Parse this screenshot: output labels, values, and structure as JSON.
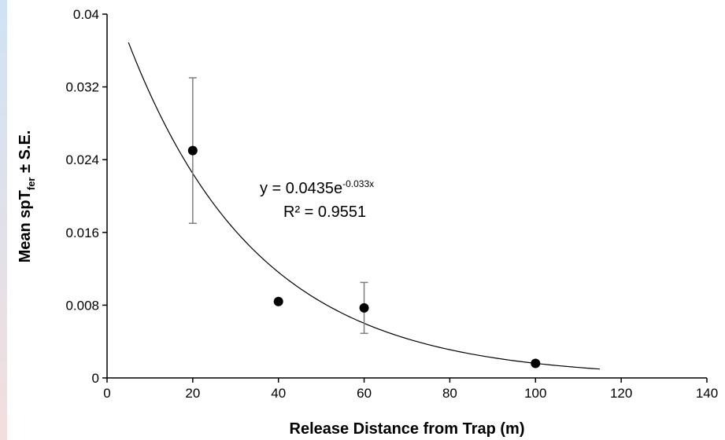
{
  "chart_data": {
    "type": "scatter",
    "title": "",
    "xlabel": "Release Distance from Trap (m)",
    "ylabel": {
      "main": "Mean spT",
      "subscript": "fer",
      "suffix": " ± S.E."
    },
    "xlim": [
      0,
      140
    ],
    "ylim": [
      0,
      0.04
    ],
    "x_ticks": [
      0,
      20,
      40,
      60,
      80,
      100,
      120,
      140
    ],
    "y_ticks": [
      0,
      0.008,
      0.016,
      0.024,
      0.032,
      0.04
    ],
    "x_tick_labels": [
      "0",
      "20",
      "40",
      "60",
      "80",
      "100",
      "120",
      "140"
    ],
    "y_tick_labels": [
      "0",
      "0.008",
      "0.016",
      "0.024",
      "0.032",
      "0.04"
    ],
    "grid": false,
    "series": [
      {
        "x": [
          20,
          40,
          60,
          100
        ],
        "y": [
          0.025,
          0.0084,
          0.0077,
          0.0016
        ],
        "error": [
          0.008,
          0,
          0.0028,
          0
        ],
        "color": "#000000"
      }
    ],
    "trendline": {
      "type": "exponential",
      "a": 0.0435,
      "b": -0.033,
      "x_range": [
        5,
        115
      ],
      "equation": {
        "prefix": "y = 0.0435e",
        "exponent": "-0.033x"
      },
      "r_squared": "R² = 0.9551"
    },
    "colors": {
      "edge_gradient_top": "#cfe3f5",
      "edge_gradient_bottom": "#f3dede"
    }
  }
}
